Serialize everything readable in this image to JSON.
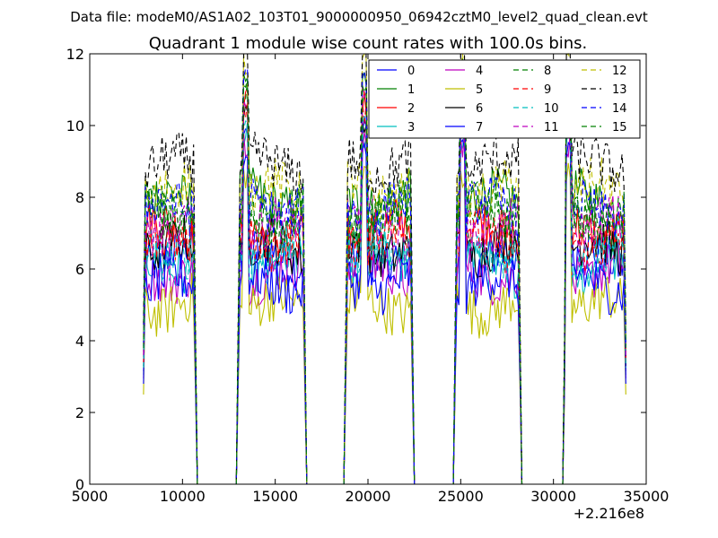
{
  "header": {
    "datafile": "Data file: modeM0/AS1A02_103T01_9000000950_06942cztM0_level2_quad_clean.evt"
  },
  "chart_data": {
    "type": "line",
    "title": "Quadrant 1 module wise count rates with 100.0s bins.",
    "xlabel": "",
    "ylabel": "",
    "xlim": [
      5000,
      35000
    ],
    "ylim": [
      0,
      12
    ],
    "x_offset_label": "+2.216e8",
    "xticks": [
      5000,
      10000,
      15000,
      20000,
      25000,
      30000,
      35000
    ],
    "xtick_labels": [
      "5000",
      "10000",
      "15000",
      "20000",
      "25000",
      "30000",
      "35000"
    ],
    "yticks": [
      0,
      2,
      4,
      6,
      8,
      10,
      12
    ],
    "ytick_labels": [
      "0",
      "2",
      "4",
      "6",
      "8",
      "10",
      "12"
    ],
    "grid": false,
    "legend_position": "top-right",
    "data_segments": [
      {
        "start": 7900,
        "end": 10700,
        "peak": null
      },
      {
        "start": 13000,
        "end": 16600,
        "peak": 13400
      },
      {
        "start": 18800,
        "end": 22400,
        "peak": 19800
      },
      {
        "start": 24700,
        "end": 28200,
        "peak": 25100
      },
      {
        "start": 30600,
        "end": 33900,
        "peak": 30800
      }
    ],
    "series": [
      {
        "name": "0",
        "color": "#0000ff",
        "dashed": false,
        "level": 6.3
      },
      {
        "name": "1",
        "color": "#008000",
        "dashed": false,
        "level": 7.9
      },
      {
        "name": "2",
        "color": "#ff0000",
        "dashed": false,
        "level": 7.1
      },
      {
        "name": "3",
        "color": "#00bfbf",
        "dashed": false,
        "level": 6.1
      },
      {
        "name": "4",
        "color": "#bf00bf",
        "dashed": false,
        "level": 5.9
      },
      {
        "name": "5",
        "color": "#bfbf00",
        "dashed": false,
        "level": 5.0
      },
      {
        "name": "6",
        "color": "#000000",
        "dashed": false,
        "level": 6.6
      },
      {
        "name": "7",
        "color": "#0000ff",
        "dashed": false,
        "level": 5.6
      },
      {
        "name": "8",
        "color": "#008000",
        "dashed": true,
        "level": 7.4
      },
      {
        "name": "9",
        "color": "#ff0000",
        "dashed": true,
        "level": 6.8
      },
      {
        "name": "10",
        "color": "#00bfbf",
        "dashed": true,
        "level": 6.5
      },
      {
        "name": "11",
        "color": "#bf00bf",
        "dashed": true,
        "level": 7.2
      },
      {
        "name": "12",
        "color": "#bfbf00",
        "dashed": true,
        "level": 8.2
      },
      {
        "name": "13",
        "color": "#000000",
        "dashed": true,
        "level": 8.9
      },
      {
        "name": "14",
        "color": "#0000ff",
        "dashed": true,
        "level": 7.7
      },
      {
        "name": "15",
        "color": "#008000",
        "dashed": true,
        "level": 7.6
      }
    ]
  }
}
